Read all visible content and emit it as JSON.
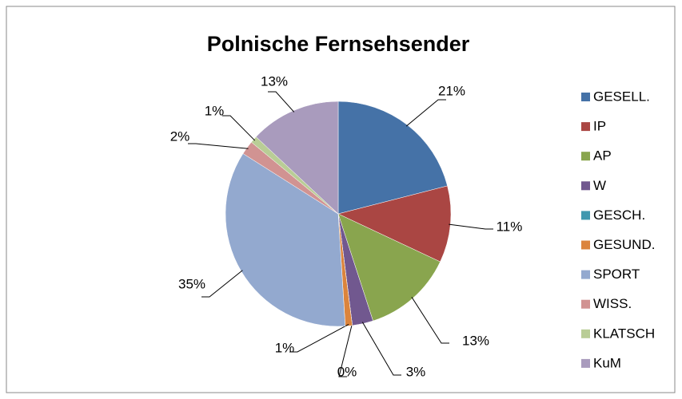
{
  "chart_data": {
    "type": "pie",
    "title": "Polnische Fernsehsender",
    "categories": [
      "GESELL.",
      "IP",
      "AP",
      "W",
      "GESCH.",
      "GESUND.",
      "SPORT",
      "WISS.",
      "KLATSCH",
      "KuM"
    ],
    "values": [
      21,
      11,
      13,
      3,
      0,
      1,
      35,
      2,
      1,
      13
    ],
    "value_labels": [
      "21%",
      "11%",
      "13%",
      "3%",
      "0%",
      "1%",
      "35%",
      "2%",
      "1%",
      "13%"
    ],
    "colors": [
      "#4572A7",
      "#AA4643",
      "#89A54E",
      "#71588F",
      "#4198AF",
      "#DB843D",
      "#93A9CF",
      "#D19392",
      "#B9CD96",
      "#A99BBD"
    ],
    "legend": "right"
  }
}
